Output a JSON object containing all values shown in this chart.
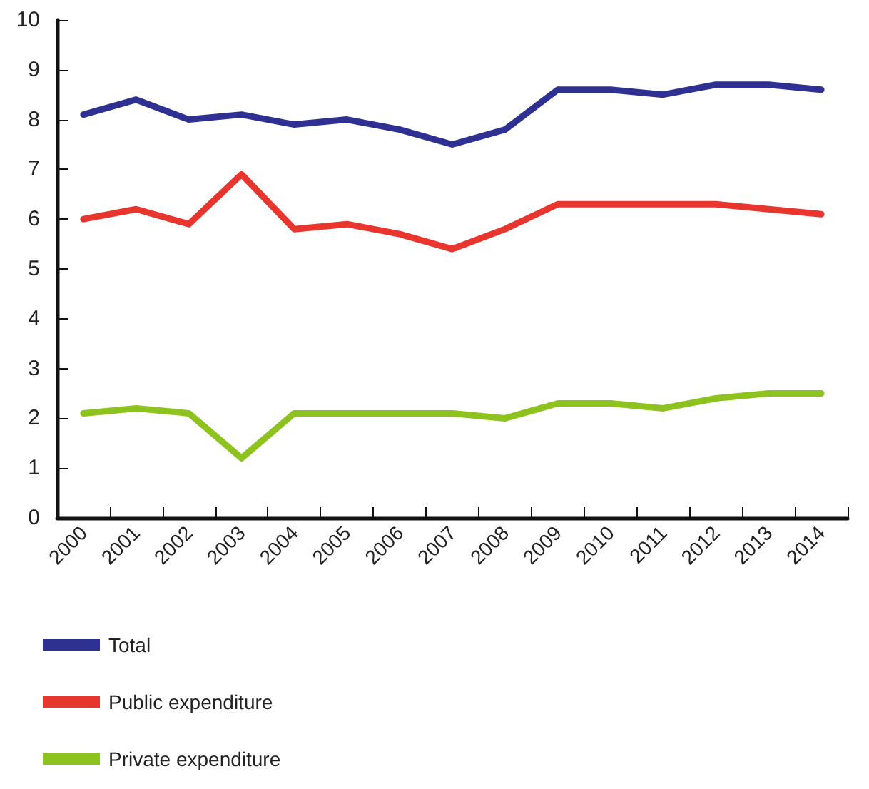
{
  "chart_data": {
    "type": "line",
    "categories": [
      "2000",
      "2001",
      "2002",
      "2003",
      "2004",
      "2005",
      "2006",
      "2007",
      "2008",
      "2009",
      "2010",
      "2011",
      "2012",
      "2013",
      "2014"
    ],
    "series": [
      {
        "name": "Total",
        "color": "#2e3192",
        "values": [
          8.1,
          8.4,
          8.0,
          8.1,
          7.9,
          8.0,
          7.8,
          7.5,
          7.8,
          8.6,
          8.6,
          8.5,
          8.7,
          8.7,
          8.6
        ]
      },
      {
        "name": "Public expenditure",
        "color": "#e8352e",
        "values": [
          6.0,
          6.2,
          5.9,
          6.9,
          5.8,
          5.9,
          5.7,
          5.4,
          5.8,
          6.3,
          6.3,
          6.3,
          6.3,
          6.2,
          6.1
        ]
      },
      {
        "name": "Private expenditure",
        "color": "#8dc21f",
        "values": [
          2.1,
          2.2,
          2.1,
          1.2,
          2.1,
          2.1,
          2.1,
          2.1,
          2.0,
          2.3,
          2.3,
          2.2,
          2.4,
          2.5,
          2.5
        ]
      }
    ],
    "ylim": [
      0,
      10
    ],
    "yticks": [
      0,
      1,
      2,
      3,
      4,
      5,
      6,
      7,
      8,
      9,
      10
    ],
    "grid": false,
    "legend": "bottom",
    "marker": "none",
    "line_style": "solid"
  }
}
